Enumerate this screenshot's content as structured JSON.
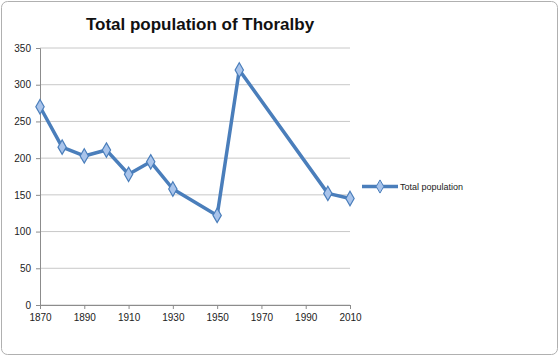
{
  "chart_data": {
    "type": "line",
    "title": "Total population of Thoralby",
    "x": [
      1870,
      1880,
      1890,
      1900,
      1910,
      1920,
      1930,
      1950,
      1960,
      2000,
      2010
    ],
    "series": [
      {
        "name": "Total population",
        "color": "#4a7ebb",
        "marker": "diamond",
        "values": [
          270,
          215,
          203,
          211,
          178,
          195,
          158,
          122,
          320,
          152,
          145
        ]
      }
    ],
    "xlim": [
      1870,
      2010
    ],
    "xticks": [
      1870,
      1890,
      1910,
      1930,
      1950,
      1970,
      1990,
      2010
    ],
    "ylim": [
      0,
      350
    ],
    "yticks": [
      0,
      50,
      100,
      150,
      200,
      250,
      300,
      350
    ],
    "grid": true,
    "legend": "right"
  }
}
